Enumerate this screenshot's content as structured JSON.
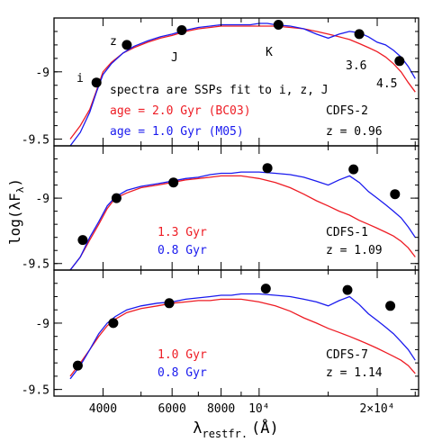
{
  "chart_data": [
    {
      "type": "line",
      "panel": "top",
      "annotations": {
        "note": "spectra are SSPs fit to i, z, J",
        "series_red_label": "age = 2.0 Gyr (BC03)",
        "series_blue_label": "age = 1.0 Gyr (M05)",
        "object_label": "CDFS-2",
        "redshift_label": "z = 0.96"
      },
      "band_labels": [
        "i",
        "z",
        "J",
        "K",
        "3.6",
        "4.5"
      ],
      "y_ticks": [
        "-9",
        "-9.5"
      ],
      "ylim": [
        -9.55,
        -8.6
      ],
      "photometry": [
        {
          "x": 3850,
          "y": -9.08
        },
        {
          "x": 4600,
          "y": -8.8
        },
        {
          "x": 6350,
          "y": -8.69
        },
        {
          "x": 11200,
          "y": -8.65
        },
        {
          "x": 18000,
          "y": -8.72
        },
        {
          "x": 22800,
          "y": -8.92
        }
      ],
      "series": [
        {
          "color": "#ee1c24",
          "x": [
            3300,
            3500,
            3700,
            3850,
            4000,
            4200,
            4500,
            4800,
            5200,
            5600,
            6000,
            6500,
            7000,
            7500,
            8000,
            8500,
            9000,
            9500,
            10000,
            10500,
            11000,
            12000,
            13000,
            14000,
            15000,
            16000,
            17000,
            18000,
            19000,
            20000,
            21000,
            22000,
            23000,
            24000,
            25000
          ],
          "y": [
            -9.5,
            -9.4,
            -9.28,
            -9.14,
            -9.0,
            -8.93,
            -8.86,
            -8.82,
            -8.78,
            -8.75,
            -8.73,
            -8.7,
            -8.68,
            -8.67,
            -8.66,
            -8.66,
            -8.66,
            -8.66,
            -8.66,
            -8.66,
            -8.66,
            -8.67,
            -8.68,
            -8.7,
            -8.72,
            -8.74,
            -8.76,
            -8.79,
            -8.82,
            -8.85,
            -8.89,
            -8.94,
            -9.0,
            -9.08,
            -9.15
          ]
        },
        {
          "color": "#1a1aee",
          "x": [
            3300,
            3500,
            3700,
            3850,
            4000,
            4200,
            4500,
            4800,
            5200,
            5600,
            6000,
            6500,
            7000,
            7500,
            8000,
            8500,
            9000,
            9500,
            10000,
            10500,
            11000,
            12000,
            13000,
            14000,
            15000,
            16000,
            17000,
            18000,
            19000,
            20000,
            21000,
            22000,
            23000,
            24000,
            25000
          ],
          "y": [
            -9.55,
            -9.45,
            -9.3,
            -9.15,
            -9.02,
            -8.94,
            -8.86,
            -8.81,
            -8.77,
            -8.74,
            -8.72,
            -8.69,
            -8.67,
            -8.66,
            -8.65,
            -8.65,
            -8.65,
            -8.65,
            -8.64,
            -8.64,
            -8.65,
            -8.66,
            -8.68,
            -8.72,
            -8.75,
            -8.72,
            -8.7,
            -8.71,
            -8.74,
            -8.78,
            -8.8,
            -8.84,
            -8.89,
            -8.96,
            -9.05
          ]
        }
      ]
    },
    {
      "type": "line",
      "panel": "middle",
      "annotations": {
        "series_red_label": "1.3 Gyr",
        "series_blue_label": "0.8 Gyr",
        "object_label": "CDFS-1",
        "redshift_label": "z = 1.09"
      },
      "y_ticks": [
        "-9",
        "-9.5"
      ],
      "ylim": [
        -9.55,
        -8.6
      ],
      "photometry": [
        {
          "x": 3550,
          "y": -9.32
        },
        {
          "x": 4330,
          "y": -9.0
        },
        {
          "x": 6050,
          "y": -8.88
        },
        {
          "x": 10500,
          "y": -8.77
        },
        {
          "x": 17400,
          "y": -8.78
        },
        {
          "x": 22200,
          "y": -8.97
        }
      ],
      "series": [
        {
          "color": "#ee1c24",
          "x": [
            3300,
            3500,
            3700,
            3900,
            4100,
            4300,
            4600,
            5000,
            5500,
            6000,
            6500,
            7000,
            7500,
            8000,
            8500,
            9000,
            9500,
            10000,
            11000,
            12000,
            13000,
            14000,
            15000,
            16000,
            17000,
            18000,
            19000,
            20000,
            21000,
            22000,
            23000,
            24000,
            25000
          ],
          "y": [
            -9.55,
            -9.45,
            -9.32,
            -9.2,
            -9.08,
            -9.0,
            -8.96,
            -8.92,
            -8.9,
            -8.88,
            -8.86,
            -8.85,
            -8.84,
            -8.83,
            -8.83,
            -8.83,
            -8.84,
            -8.85,
            -8.88,
            -8.92,
            -8.97,
            -9.02,
            -9.06,
            -9.1,
            -9.13,
            -9.17,
            -9.2,
            -9.23,
            -9.26,
            -9.29,
            -9.33,
            -9.38,
            -9.45
          ]
        },
        {
          "color": "#1a1aee",
          "x": [
            3300,
            3500,
            3700,
            3900,
            4100,
            4300,
            4600,
            5000,
            5500,
            6000,
            6500,
            7000,
            7500,
            8000,
            8500,
            9000,
            9500,
            10000,
            11000,
            12000,
            13000,
            14000,
            15000,
            16000,
            17000,
            18000,
            19000,
            20000,
            21000,
            22000,
            23000,
            24000,
            25000
          ],
          "y": [
            -9.55,
            -9.45,
            -9.3,
            -9.18,
            -9.06,
            -8.99,
            -8.94,
            -8.91,
            -8.89,
            -8.87,
            -8.85,
            -8.84,
            -8.82,
            -8.81,
            -8.81,
            -8.8,
            -8.8,
            -8.8,
            -8.81,
            -8.82,
            -8.84,
            -8.87,
            -8.9,
            -8.86,
            -8.83,
            -8.88,
            -8.95,
            -9.0,
            -9.05,
            -9.1,
            -9.15,
            -9.22,
            -9.3
          ]
        }
      ]
    },
    {
      "type": "line",
      "panel": "bottom",
      "annotations": {
        "series_red_label": "1.0 Gyr",
        "series_blue_label": "0.8 Gyr",
        "object_label": "CDFS-7",
        "redshift_label": "z = 1.14"
      },
      "y_ticks": [
        "-9",
        "-9.5"
      ],
      "ylim": [
        -9.55,
        -8.6
      ],
      "photometry": [
        {
          "x": 3450,
          "y": -9.32
        },
        {
          "x": 4250,
          "y": -9.0
        },
        {
          "x": 5900,
          "y": -8.85
        },
        {
          "x": 10400,
          "y": -8.74
        },
        {
          "x": 16800,
          "y": -8.75
        },
        {
          "x": 21600,
          "y": -8.87
        }
      ],
      "series": [
        {
          "color": "#ee1c24",
          "x": [
            3300,
            3500,
            3700,
            3900,
            4100,
            4300,
            4600,
            5000,
            5500,
            6000,
            6500,
            7000,
            7500,
            8000,
            8500,
            9000,
            9500,
            10000,
            11000,
            12000,
            13000,
            14000,
            15000,
            16000,
            17000,
            18000,
            19000,
            20000,
            21000,
            22000,
            23000,
            24000,
            25000
          ],
          "y": [
            -9.4,
            -9.3,
            -9.2,
            -9.1,
            -9.02,
            -8.97,
            -8.92,
            -8.89,
            -8.87,
            -8.85,
            -8.84,
            -8.83,
            -8.83,
            -8.82,
            -8.82,
            -8.82,
            -8.83,
            -8.84,
            -8.87,
            -8.91,
            -8.96,
            -9.0,
            -9.04,
            -9.07,
            -9.1,
            -9.13,
            -9.16,
            -9.19,
            -9.22,
            -9.25,
            -9.28,
            -9.32,
            -9.38
          ]
        },
        {
          "color": "#1a1aee",
          "x": [
            3300,
            3500,
            3700,
            3900,
            4100,
            4300,
            4600,
            5000,
            5500,
            6000,
            6500,
            7000,
            7500,
            8000,
            8500,
            9000,
            9500,
            10000,
            11000,
            12000,
            13000,
            14000,
            15000,
            16000,
            17000,
            18000,
            19000,
            20000,
            21000,
            22000,
            23000,
            24000,
            25000
          ],
          "y": [
            -9.42,
            -9.32,
            -9.2,
            -9.08,
            -9.0,
            -8.95,
            -8.9,
            -8.87,
            -8.85,
            -8.84,
            -8.82,
            -8.81,
            -8.8,
            -8.79,
            -8.79,
            -8.78,
            -8.78,
            -8.78,
            -8.79,
            -8.8,
            -8.82,
            -8.84,
            -8.87,
            -8.83,
            -8.8,
            -8.86,
            -8.93,
            -8.98,
            -9.03,
            -9.08,
            -9.14,
            -9.2,
            -9.28
          ]
        }
      ]
    }
  ],
  "x_axis": {
    "label": "λrestfr. (Å)",
    "label_main": "λ",
    "label_sub": "restfr.",
    "label_unit": "(Å)",
    "scale": "log",
    "xlim": [
      3000,
      25500
    ],
    "ticks": [
      {
        "value": 4000,
        "label": "4000"
      },
      {
        "value": 6000,
        "label": "6000"
      },
      {
        "value": 8000,
        "label": "8000"
      },
      {
        "value": 10000,
        "label": "10⁴"
      },
      {
        "value": 20000,
        "label": "2×10⁴"
      }
    ]
  },
  "y_axis": {
    "label": "log(λFλ)",
    "label_main": "log(λF",
    "label_sub": "λ",
    "label_close": ")"
  },
  "colors": {
    "red": "#ee1c24",
    "blue": "#1a1aee",
    "points": "#000000"
  }
}
